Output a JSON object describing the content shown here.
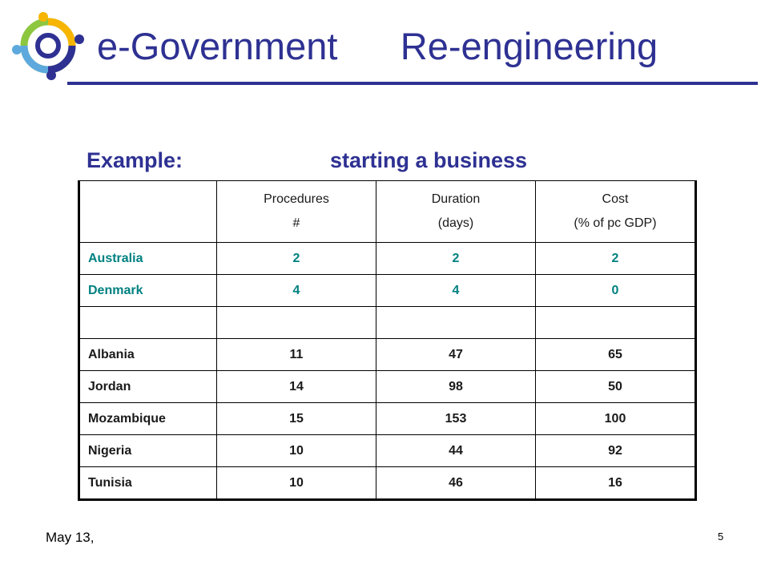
{
  "header": {
    "title": "e-Government      Re-engineering"
  },
  "subtitle": {
    "left": "Example:",
    "right": "starting a business"
  },
  "table": {
    "headers": [
      {
        "line1": "",
        "line2": ""
      },
      {
        "line1": "Procedures",
        "line2": "#"
      },
      {
        "line1": "Duration",
        "line2": "(days)"
      },
      {
        "line1": "Cost",
        "line2": "(% of pc GDP)"
      }
    ],
    "rows": [
      {
        "country": "Australia",
        "procedures": "2",
        "duration": "2",
        "cost": "2"
      },
      {
        "country": "Denmark",
        "procedures": "4",
        "duration": "4",
        "cost": "0"
      },
      {
        "country": "",
        "procedures": "",
        "duration": "",
        "cost": ""
      },
      {
        "country": "Albania",
        "procedures": "11",
        "duration": "47",
        "cost": "65"
      },
      {
        "country": "Jordan",
        "procedures": "14",
        "duration": "98",
        "cost": "50"
      },
      {
        "country": "Mozambique",
        "procedures": "15",
        "duration": "153",
        "cost": "100"
      },
      {
        "country": "Nigeria",
        "procedures": "10",
        "duration": "44",
        "cost": "92"
      },
      {
        "country": "Tunisia",
        "procedures": "10",
        "duration": "46",
        "cost": "16"
      }
    ]
  },
  "footer": {
    "date": "May 13,",
    "page": "5"
  },
  "colors": {
    "title": "#2e3192",
    "highlight_rows": "#008080"
  }
}
